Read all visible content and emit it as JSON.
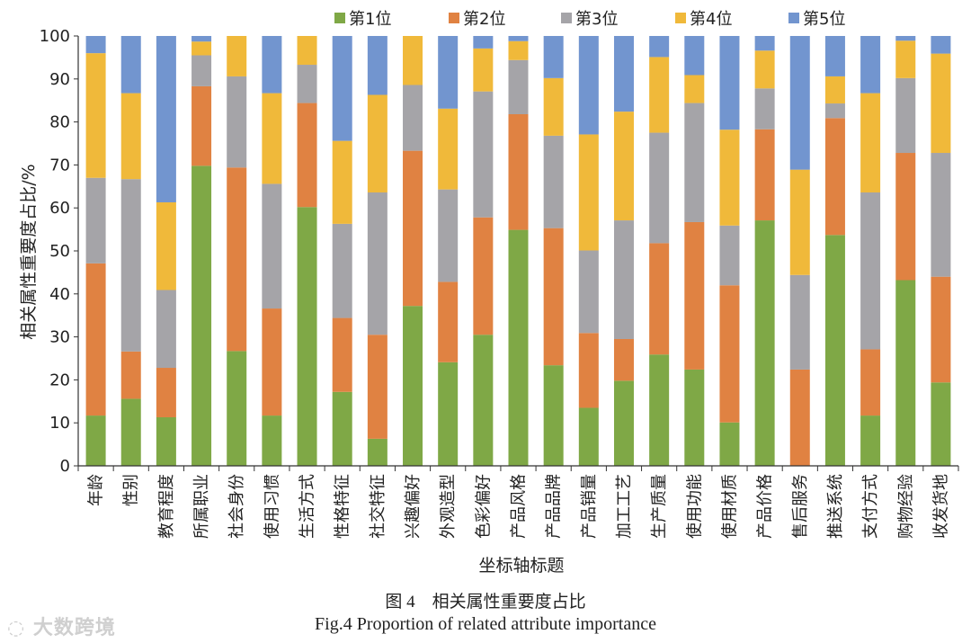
{
  "chart_data": {
    "type": "bar",
    "stacked": true,
    "xlabel": "坐标轴标题",
    "ylabel": "相关属性重要度占比/%",
    "ylim": [
      0,
      100
    ],
    "yticks": [
      0,
      10,
      20,
      30,
      40,
      50,
      60,
      70,
      80,
      90,
      100
    ],
    "grid": false,
    "legend_position": "top",
    "categories": [
      "年龄",
      "性别",
      "教育程度",
      "所属职业",
      "社会身份",
      "使用习惯",
      "生活方式",
      "性格特征",
      "社交特征",
      "兴趣偏好",
      "外观造型",
      "色彩偏好",
      "产品风格",
      "产品品牌",
      "产品销量",
      "加工工艺",
      "生产质量",
      "使用功能",
      "使用材质",
      "产品价格",
      "售后服务",
      "推送系统",
      "支付方式",
      "购物经验",
      "收发货地"
    ],
    "series": [
      {
        "name": "第1位",
        "color": "#7fa846",
        "values": [
          11.7,
          15.6,
          11.3,
          69.8,
          26.7,
          11.7,
          60.2,
          17.2,
          6.3,
          37.2,
          24.1,
          30.5,
          54.9,
          23.4,
          13.5,
          19.8,
          25.9,
          22.4,
          10.1,
          57.1,
          0,
          53.7,
          11.7,
          43.2,
          19.4
        ]
      },
      {
        "name": "第2位",
        "color": "#e08242",
        "values": [
          35.4,
          11.0,
          11.5,
          18.5,
          42.7,
          24.9,
          24.2,
          17.2,
          24.2,
          36.1,
          18.7,
          27.3,
          26.9,
          31.9,
          17.4,
          9.7,
          25.9,
          34.3,
          31.9,
          21.2,
          22.4,
          27.2,
          15.4,
          29.6,
          24.6
        ]
      },
      {
        "name": "第3位",
        "color": "#a5a4a8",
        "values": [
          19.9,
          40.1,
          18.1,
          7.2,
          21.2,
          29.0,
          8.9,
          21.9,
          33.1,
          15.3,
          21.5,
          29.3,
          12.6,
          21.5,
          19.2,
          27.6,
          25.7,
          27.7,
          13.9,
          9.5,
          22.0,
          3.4,
          36.5,
          17.4,
          28.8
        ]
      },
      {
        "name": "第4位",
        "color": "#f0b93a",
        "values": [
          29.0,
          20.0,
          20.4,
          3.2,
          9.4,
          21.1,
          6.7,
          19.3,
          22.7,
          11.4,
          18.8,
          10.0,
          4.4,
          13.4,
          27.0,
          25.3,
          17.6,
          6.5,
          22.3,
          8.8,
          24.5,
          6.3,
          23.1,
          8.7,
          23.1
        ]
      },
      {
        "name": "第5位",
        "color": "#7295cf",
        "values": [
          4.0,
          13.3,
          38.7,
          1.3,
          0,
          13.3,
          0,
          24.4,
          13.7,
          0,
          16.9,
          2.9,
          1.2,
          9.8,
          22.9,
          17.6,
          4.9,
          9.1,
          21.8,
          3.4,
          31.1,
          9.4,
          13.3,
          1.1,
          4.1
        ]
      }
    ]
  },
  "caption": {
    "cn": "图 4　相关属性重要度占比",
    "en": "Fig.4 Proportion of related attribute importance"
  },
  "watermark": "大数跨境"
}
